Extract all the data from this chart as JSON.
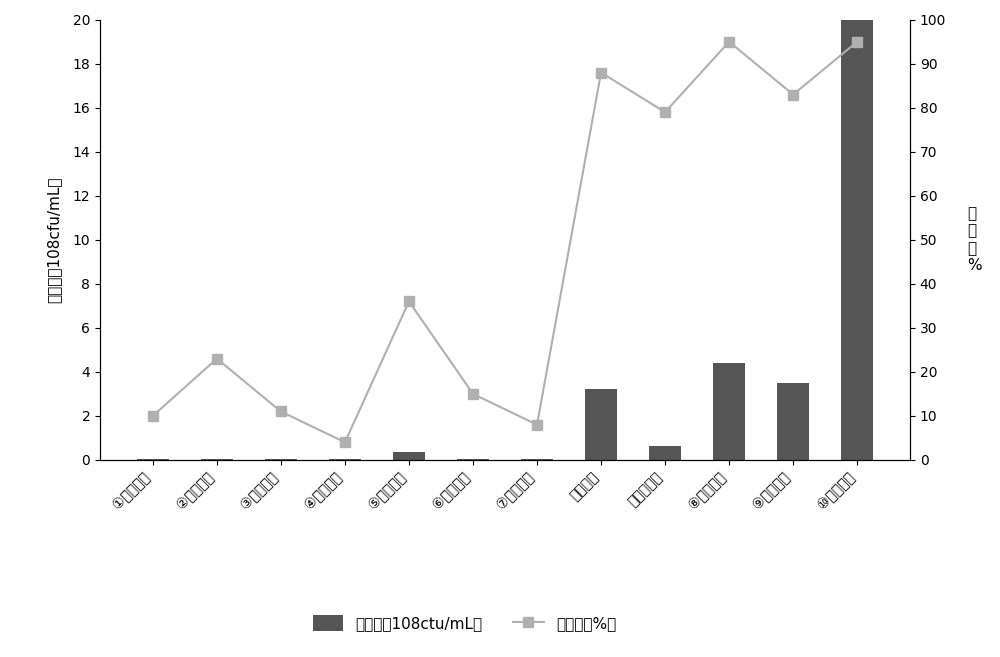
{
  "categories": [
    "①号培养基",
    "②号培养基",
    "③号培养基",
    "④号培养基",
    "⑤号培养基",
    "⑥号培养基",
    "⑦号培养基",
    "营养肉汤",
    "淡薄培养基",
    "⑧号培养基",
    "⑨号培养基",
    "⑩号培养基"
  ],
  "bar_values": [
    0.05,
    0.05,
    0.05,
    0.05,
    0.35,
    0.05,
    0.05,
    3.2,
    0.65,
    4.4,
    3.5,
    20.0
  ],
  "line_values_pct": [
    10,
    23,
    11,
    4,
    36,
    15,
    8,
    88,
    79,
    95,
    83,
    95
  ],
  "bar_color": "#555555",
  "line_color": "#b0b0b0",
  "marker_color": "#b0b0b0",
  "ylabel_left": "芽包数（108cfu/mL）",
  "ylabel_right": "芽\n包\n率\n%",
  "ylim_left": [
    0,
    20
  ],
  "ylim_right": [
    0,
    100
  ],
  "yticks_left": [
    0,
    2,
    4,
    6,
    8,
    10,
    12,
    14,
    16,
    18,
    20
  ],
  "yticks_right": [
    0,
    10,
    20,
    30,
    40,
    50,
    60,
    70,
    80,
    90,
    100
  ],
  "legend_bar_label": "芽包数（108ctu/mL）",
  "legend_line_label": "芽包率（%）",
  "background_color": "#ffffff",
  "axis_fontsize": 11,
  "tick_fontsize": 10,
  "legend_fontsize": 11
}
